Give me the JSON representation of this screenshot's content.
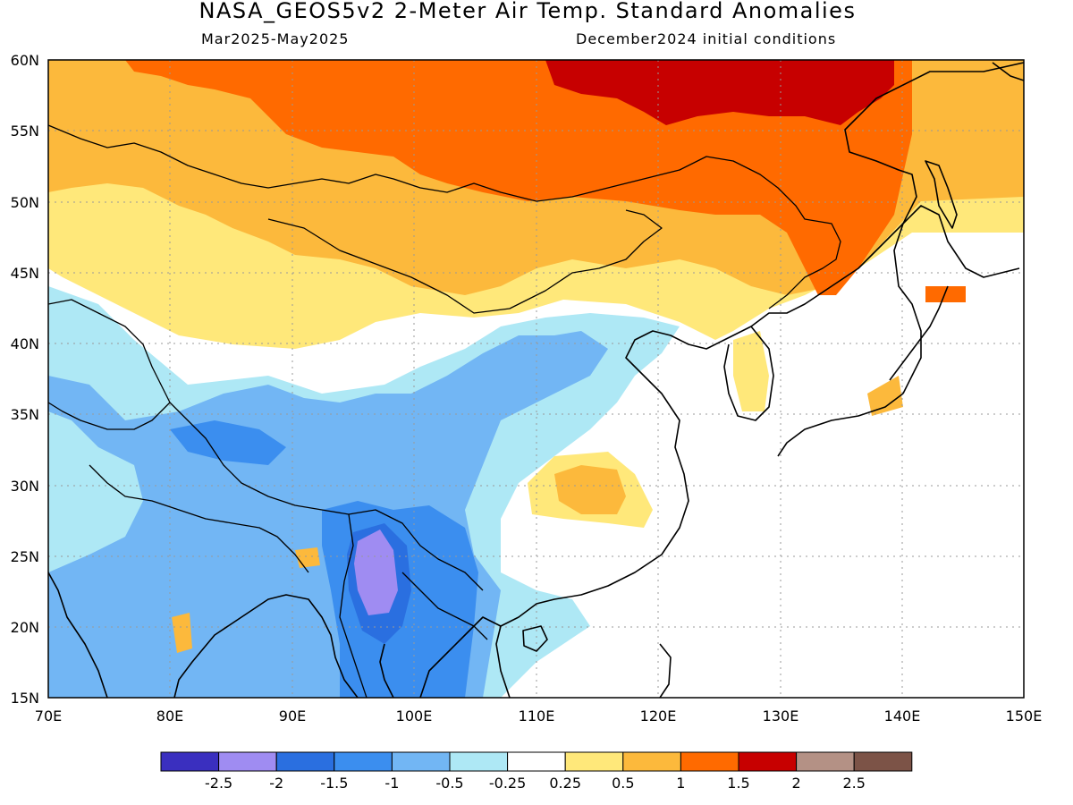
{
  "header": {
    "title": "NASA_GEOS5v2 2-Meter Air Temp. Standard Anomalies",
    "period": "Mar2025-May2025",
    "init": "December2024 initial conditions"
  },
  "map": {
    "lon_ticks": [
      "70E",
      "80E",
      "90E",
      "100E",
      "110E",
      "120E",
      "130E",
      "140E",
      "150E"
    ],
    "lat_ticks": [
      "60N",
      "55N",
      "50N",
      "45N",
      "40N",
      "35N",
      "30N",
      "25N",
      "20N",
      "15N"
    ]
  },
  "legend": {
    "labels": [
      "-2.5",
      "-2",
      "-1.5",
      "-1",
      "-0.5",
      "-0.25",
      "0.25",
      "0.5",
      "1",
      "1.5",
      "2",
      "2.5"
    ],
    "colors": [
      "#3a2fbf",
      "#9f8cf2",
      "#2a6fe0",
      "#3b8eef",
      "#72b6f4",
      "#aee8f5",
      "#ffffff",
      "#ffe87a",
      "#fcb93c",
      "#ff6a00",
      "#c70000",
      "#b49185",
      "#7c5347"
    ]
  },
  "chart_data": {
    "type": "heatmap",
    "title": "NASA_GEOS5v2 2-Meter Air Temp. Standard Anomalies",
    "x_range": [
      70,
      150
    ],
    "y_range": [
      15,
      60
    ],
    "x_ticks": [
      "70E",
      "80E",
      "90E",
      "100E",
      "110E",
      "120E",
      "130E",
      "140E",
      "150E"
    ],
    "y_ticks": [
      "60N",
      "55N",
      "50N",
      "45N",
      "40N",
      "35N",
      "30N",
      "25N",
      "20N",
      "15N"
    ],
    "grid": true,
    "colorbar_levels": [
      -2.5,
      -2,
      -1.5,
      -1,
      -0.5,
      -0.25,
      0.25,
      0.5,
      1,
      1.5,
      2,
      2.5
    ]
  }
}
